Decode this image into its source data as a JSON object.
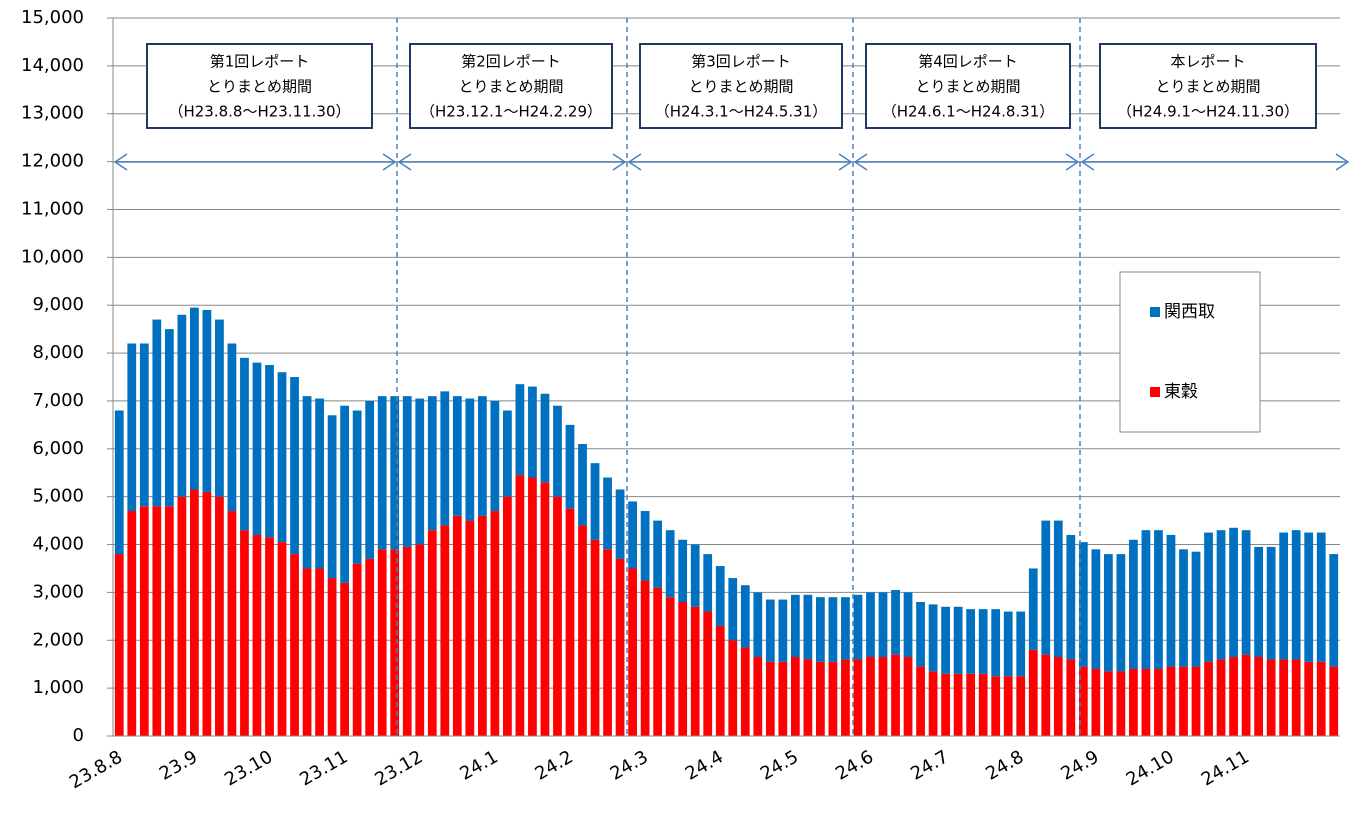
{
  "chart_data": {
    "type": "stacked_bar",
    "categories": [
      "23.8.8",
      null,
      null,
      null,
      null,
      null,
      "23.9",
      null,
      null,
      null,
      null,
      null,
      "23.10",
      null,
      null,
      null,
      null,
      null,
      "23.11",
      null,
      null,
      null,
      null,
      null,
      "23.12",
      null,
      null,
      null,
      null,
      null,
      "24.1",
      null,
      null,
      null,
      null,
      null,
      "24.2",
      null,
      null,
      null,
      null,
      null,
      "24.3",
      null,
      null,
      null,
      null,
      null,
      "24.4",
      null,
      null,
      null,
      null,
      null,
      "24.5",
      null,
      null,
      null,
      null,
      null,
      "24.6",
      null,
      null,
      null,
      null,
      null,
      "24.7",
      null,
      null,
      null,
      null,
      null,
      "24.8",
      null,
      null,
      null,
      null,
      null,
      "24.9",
      null,
      null,
      null,
      null,
      null,
      "24.10",
      null,
      null,
      null,
      null,
      null,
      "24.11",
      null,
      null,
      null,
      null,
      null,
      null,
      null
    ],
    "series": [
      {
        "name": "東穀",
        "color": "#ff0000",
        "values": [
          3800,
          4700,
          4800,
          4800,
          4800,
          5000,
          5150,
          5100,
          5000,
          4700,
          4300,
          4200,
          4150,
          4050,
          3800,
          3500,
          3500,
          3300,
          3200,
          3600,
          3700,
          3900,
          3900,
          3950,
          4000,
          4300,
          4400,
          4600,
          4500,
          4600,
          4700,
          5000,
          5450,
          5400,
          5300,
          5000,
          4750,
          4400,
          4100,
          3900,
          3700,
          3500,
          3250,
          3100,
          2900,
          2800,
          2700,
          2600,
          2300,
          2000,
          1850,
          1650,
          1550,
          1550,
          1650,
          1600,
          1550,
          1550,
          1600,
          1600,
          1650,
          1650,
          1700,
          1650,
          1450,
          1350,
          1300,
          1300,
          1300,
          1300,
          1250,
          1250,
          1250,
          1800,
          1700,
          1650,
          1600,
          1450,
          1400,
          1350,
          1350,
          1400,
          1400,
          1400,
          1450,
          1450,
          1450,
          1550,
          1600,
          1650,
          1700,
          1650,
          1600,
          1600,
          1600,
          1550,
          1550,
          1450
        ]
      },
      {
        "name": "関西取",
        "color": "#0070c0",
        "values": [
          3000,
          3500,
          3400,
          3900,
          3700,
          3800,
          3800,
          3800,
          3700,
          3500,
          3600,
          3600,
          3600,
          3550,
          3700,
          3600,
          3550,
          3400,
          3700,
          3200,
          3300,
          3200,
          3200,
          3150,
          3050,
          2800,
          2800,
          2500,
          2550,
          2500,
          2300,
          1800,
          1900,
          1900,
          1850,
          1900,
          1750,
          1700,
          1600,
          1500,
          1450,
          1400,
          1450,
          1400,
          1400,
          1300,
          1300,
          1200,
          1250,
          1300,
          1300,
          1350,
          1300,
          1300,
          1300,
          1350,
          1350,
          1350,
          1300,
          1350,
          1350,
          1350,
          1350,
          1350,
          1350,
          1400,
          1400,
          1400,
          1350,
          1350,
          1400,
          1350,
          1350,
          1700,
          2800,
          2850,
          2600,
          2600,
          2500,
          2450,
          2450,
          2700,
          2900,
          2900,
          2750,
          2450,
          2400,
          2700,
          2700,
          2700,
          2600,
          2300,
          2350,
          2650,
          2700,
          2700,
          2700,
          2350
        ]
      }
    ],
    "ylim": [
      0,
      15000
    ],
    "yticks": [
      0,
      {
        "value": 1000,
        "label": "1,000"
      },
      {
        "value": 2000,
        "label": "2,000"
      },
      {
        "value": 3000,
        "label": "3,000"
      },
      {
        "value": 4000,
        "label": "4,000"
      },
      {
        "value": 5000,
        "label": "5,000"
      },
      {
        "value": 6000,
        "label": "6,000"
      },
      {
        "value": 7000,
        "label": "7,000"
      },
      {
        "value": 8000,
        "label": "8,000"
      },
      {
        "value": 9000,
        "label": "9,000"
      },
      {
        "value": 10000,
        "label": "10,000"
      },
      {
        "value": 11000,
        "label": "11,000"
      },
      {
        "value": 12000,
        "label": "12,000"
      },
      {
        "value": 13000,
        "label": "13,000"
      },
      {
        "value": 14000,
        "label": "14,000"
      },
      {
        "value": 15000,
        "label": "15,000"
      }
    ],
    "grid": true,
    "annotations": [
      {
        "lines": [
          "第1回レポート",
          "とりまとめ期間",
          "（H23.8.8～H23.11.30）"
        ]
      },
      {
        "lines": [
          "第2回レポート",
          "とりまとめ期間",
          "（H23.12.1～H24.2.29）"
        ]
      },
      {
        "lines": [
          "第3回レポート",
          "とりまとめ期間",
          "（H24.3.1～H24.5.31）"
        ]
      },
      {
        "lines": [
          "第4回レポート",
          "とりまとめ期間",
          "（H24.6.1～H24.8.31）"
        ]
      },
      {
        "lines": [
          "本レポート",
          "とりまとめ期間",
          "（H24.9.1～H24.11.30）"
        ]
      }
    ]
  }
}
